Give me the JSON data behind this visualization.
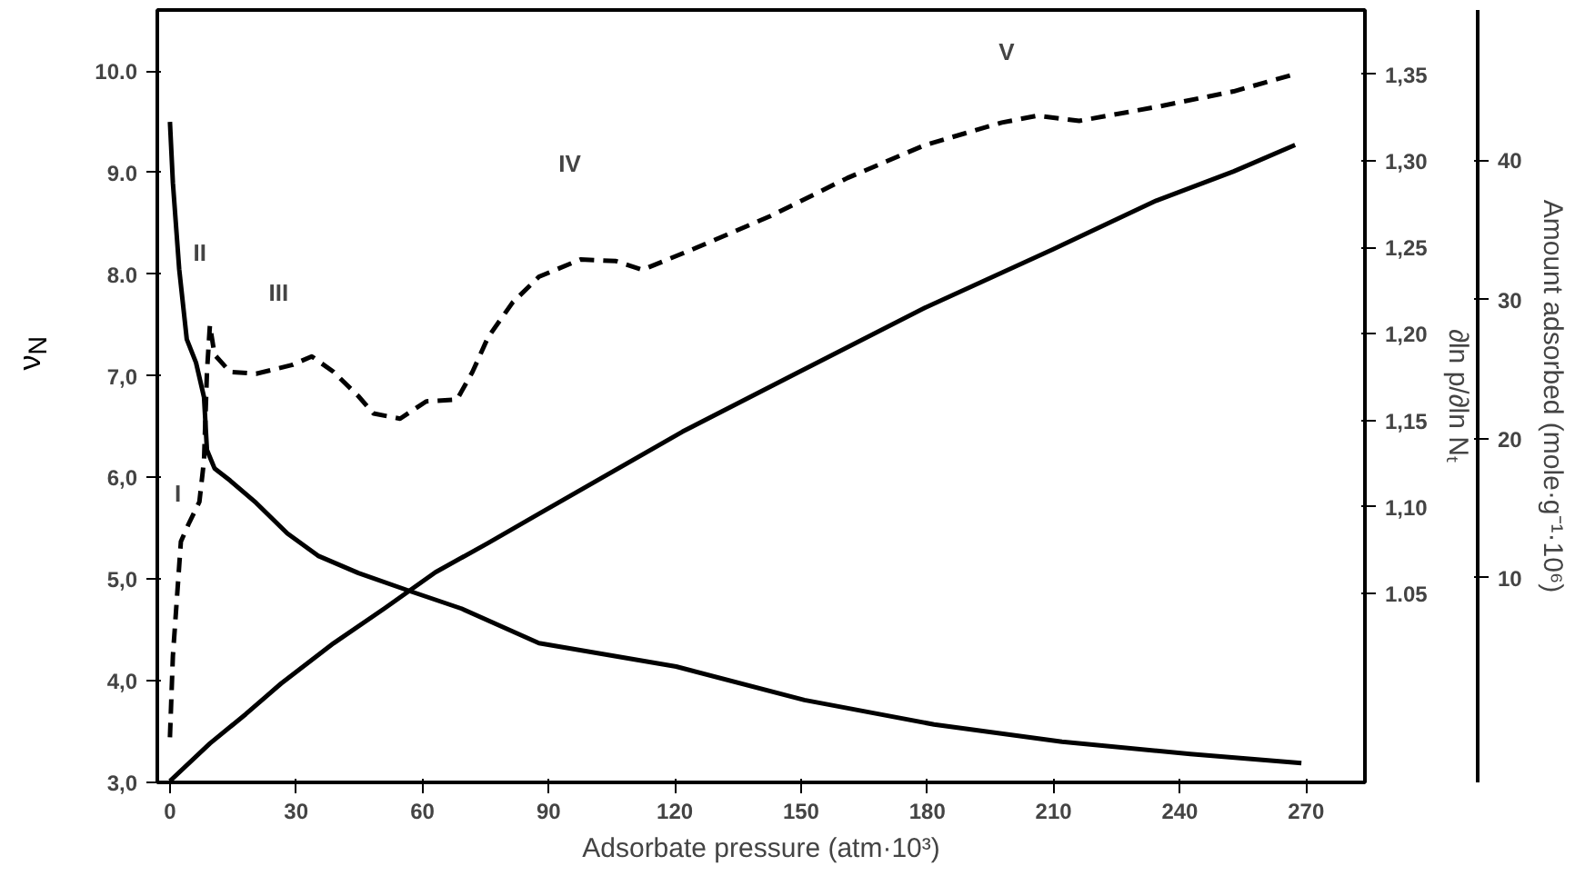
{
  "chart_data": {
    "type": "line",
    "xlabel": "Adsorbate pressure (atm·10³)",
    "ylabel": "ν$_{N}$",
    "y2label": "∂ln p/∂ln Nₜ",
    "y3label": "Amount adsorbed (mole·g⁻¹·10⁶)",
    "xlim": [
      -3,
      284
    ],
    "xticks": [
      0,
      30,
      60,
      90,
      120,
      150,
      180,
      210,
      240,
      270
    ],
    "ylim": [
      3.0,
      10.6
    ],
    "yticks": [
      {
        "value": 3,
        "label": "3,0"
      },
      {
        "value": 4,
        "label": "4,0"
      },
      {
        "value": 5,
        "label": "5,0"
      },
      {
        "value": 6,
        "label": "6,0"
      },
      {
        "value": 7,
        "label": "7,0"
      },
      {
        "value": 8,
        "label": "8.0"
      },
      {
        "value": 9,
        "label": "9.0"
      },
      {
        "value": 10,
        "label": "10.0"
      }
    ],
    "y2lim": [
      0.941,
      1.387
    ],
    "y2ticks": [
      1.05,
      {
        "value": 1.1,
        "label": "1,10"
      },
      {
        "value": 1.15,
        "label": "1,15"
      },
      {
        "value": 1.2,
        "label": "1,20"
      },
      {
        "value": 1.25,
        "label": "1,25"
      },
      {
        "value": 1.3,
        "label": "1,30"
      },
      {
        "value": 1.35,
        "label": "1,35"
      }
    ],
    "y3lim": [
      -4.7,
      50.8
    ],
    "y3ticks": [
      10,
      20,
      30,
      40
    ],
    "grid": false,
    "marker": "none",
    "series": [
      {
        "color": "#000000",
        "line_style": "solid",
        "x": [
          0,
          0.7,
          2.2,
          4.0,
          6.2,
          8.1,
          8.8,
          10.6,
          14.3,
          20.5,
          27.9,
          35.2,
          44.8,
          57.2,
          69.3,
          87.7,
          120.3,
          150.8,
          181.6,
          212.0,
          242.5,
          268.9
        ],
        "values": [
          9.5,
          8.9,
          8.05,
          7.36,
          7.13,
          6.79,
          6.27,
          6.09,
          5.97,
          5.75,
          5.45,
          5.23,
          5.06,
          4.88,
          4.71,
          4.37,
          4.14,
          3.81,
          3.57,
          3.4,
          3.28,
          3.19
        ]
      },
      {
        "color": "#000000",
        "line_style": "dashed",
        "axis": "y2",
        "x": [
          0,
          0.7,
          2.6,
          4.4,
          7.0,
          8.1,
          8.8,
          9.5,
          10.6,
          14.3,
          20.5,
          29.0,
          33.7,
          38.9,
          44.8,
          48.4,
          54.7,
          60.9,
          68.2,
          71.9,
          75.6,
          81.4,
          87.7,
          97.6,
          106.0,
          112.3,
          124.4,
          142.7,
          161.0,
          179.4,
          197.7,
          206.2,
          216.1,
          234.4,
          252.8,
          267.4
        ],
        "values": [
          0.967,
          1.014,
          1.08,
          1.09,
          1.103,
          1.127,
          1.178,
          1.205,
          1.188,
          1.178,
          1.177,
          1.182,
          1.187,
          1.178,
          1.164,
          1.154,
          1.151,
          1.161,
          1.162,
          1.178,
          1.198,
          1.218,
          1.233,
          1.243,
          1.242,
          1.237,
          1.249,
          1.268,
          1.29,
          1.309,
          1.322,
          1.326,
          1.323,
          1.331,
          1.34,
          1.35
        ]
      },
      {
        "color": "#000000",
        "line_style": "solid",
        "axis": "y3",
        "x": [
          0,
          9.5,
          18.0,
          26.4,
          38.9,
          51.0,
          63.1,
          75.6,
          87.7,
          121.8,
          148.9,
          179.4,
          209.8,
          234.4,
          252.8,
          267.4
        ],
        "values": [
          -4.6,
          -1.9,
          0.2,
          2.4,
          5.3,
          7.8,
          10.4,
          12.5,
          14.6,
          20.5,
          24.7,
          29.4,
          33.6,
          37.1,
          39.2,
          41.1
        ]
      }
    ],
    "annotations": [
      "I",
      "II",
      "III",
      "IV",
      "V"
    ]
  }
}
